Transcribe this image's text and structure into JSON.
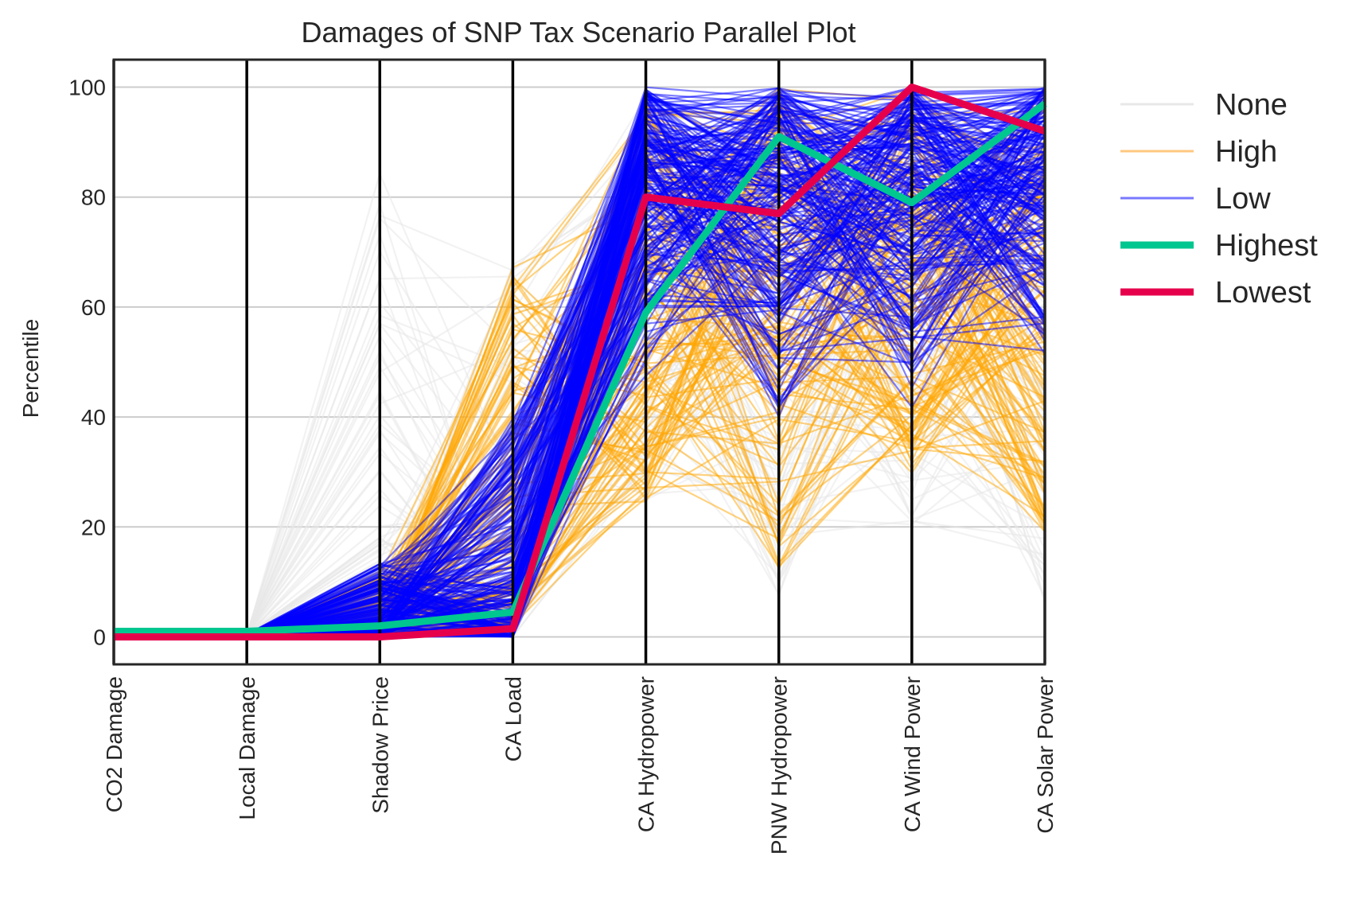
{
  "chart_data": {
    "type": "parallel-coordinates",
    "title": "Damages of SNP Tax Scenario Parallel Plot",
    "ylabel": "Percentile",
    "axes": [
      "CO2 Damage",
      "Local Damage",
      "Shadow Price",
      "CA Load",
      "CA Hydropower",
      "PNW Hydropower",
      "CA Wind Power",
      "CA Solar Power"
    ],
    "ylim": [
      -5,
      105
    ],
    "yticks": [
      0,
      20,
      40,
      60,
      80,
      100
    ],
    "grid": true,
    "legend_position": "outside right",
    "legend": [
      "None",
      "High",
      "Low",
      "Highest",
      "Lowest"
    ],
    "series": [
      {
        "name": "Highest",
        "color": "#00c68f",
        "values": [
          1,
          1,
          2,
          4.5,
          59,
          91,
          79,
          97
        ]
      },
      {
        "name": "Lowest",
        "color": "#e6004c",
        "values": [
          0,
          0,
          0,
          1.5,
          80,
          77,
          100,
          92
        ]
      }
    ],
    "groups": [
      {
        "name": "None",
        "color": "#e8e8e8",
        "ranges": [
          [
            0,
            0.5
          ],
          [
            0,
            0.5
          ],
          [
            0,
            85
          ],
          [
            0,
            68
          ],
          [
            24,
            100
          ],
          [
            7,
            100
          ],
          [
            20,
            100
          ],
          [
            5,
            100
          ]
        ]
      },
      {
        "name": "High",
        "color": "#ffa500",
        "ranges": [
          [
            0,
            0.5
          ],
          [
            0,
            0.5
          ],
          [
            0,
            12
          ],
          [
            2,
            68
          ],
          [
            24,
            98
          ],
          [
            12,
            100
          ],
          [
            29,
            100
          ],
          [
            19,
            100
          ]
        ]
      },
      {
        "name": "Low",
        "color": "#0000ff",
        "ranges": [
          [
            0,
            0.5
          ],
          [
            0,
            0.5
          ],
          [
            0,
            13.5
          ],
          [
            0,
            40
          ],
          [
            45,
            100
          ],
          [
            38,
            100
          ],
          [
            40,
            100
          ],
          [
            45,
            100
          ]
        ]
      }
    ]
  }
}
